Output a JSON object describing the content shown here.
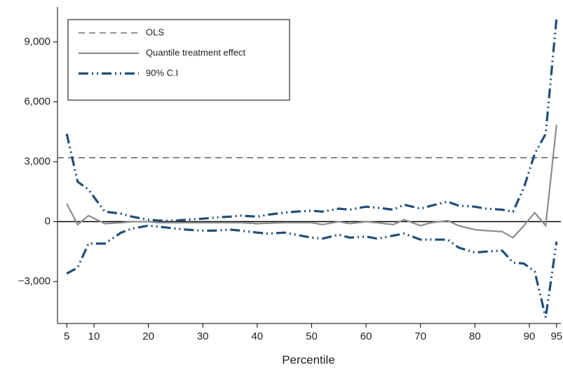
{
  "chart_data": {
    "type": "line",
    "x_label": "Percentile",
    "x": [
      5,
      7,
      9,
      12,
      15,
      17,
      20,
      22,
      25,
      27,
      30,
      32,
      35,
      37,
      40,
      42,
      45,
      47,
      50,
      52,
      55,
      57,
      60,
      62,
      65,
      67,
      70,
      72,
      75,
      77,
      80,
      82,
      85,
      87,
      89,
      91,
      93,
      95
    ],
    "xlim": [
      3.3,
      95.8
    ],
    "xticks": [
      5,
      10,
      20,
      30,
      40,
      50,
      60,
      70,
      80,
      90,
      95
    ],
    "ylim": [
      -5100,
      10750
    ],
    "yticks": [
      {
        "value": -3000,
        "label": "−3,000"
      },
      0,
      {
        "value": 3000,
        "label": "3,000"
      },
      {
        "value": 6000,
        "label": "6,000"
      },
      {
        "value": 9000,
        "label": "9,000"
      }
    ],
    "reference_line": {
      "name": "OLS",
      "value": 3200,
      "color": "#555555"
    },
    "zero_line": true,
    "series": [
      {
        "name": "Quantile treatment effect",
        "color": "#8c8c8c",
        "values": [
          900,
          -150,
          300,
          -100,
          -50,
          0,
          0,
          -50,
          -50,
          -50,
          -50,
          -50,
          -50,
          -50,
          -100,
          -80,
          -50,
          -50,
          -50,
          -150,
          0,
          -100,
          0,
          -50,
          -150,
          100,
          -200,
          -50,
          50,
          -200,
          -400,
          -450,
          -500,
          -800,
          -200,
          450,
          -200,
          4850
        ]
      },
      {
        "name": "90% C.I",
        "color": "#1f4e79",
        "upper": [
          4400,
          2000,
          1600,
          500,
          400,
          250,
          100,
          50,
          50,
          100,
          150,
          200,
          250,
          300,
          250,
          350,
          450,
          500,
          550,
          500,
          650,
          600,
          750,
          700,
          600,
          850,
          650,
          800,
          1000,
          800,
          750,
          650,
          600,
          500,
          1700,
          3400,
          4400,
          10200
        ],
        "lower": [
          -2600,
          -2300,
          -1100,
          -1100,
          -550,
          -350,
          -200,
          -250,
          -350,
          -400,
          -450,
          -450,
          -400,
          -450,
          -550,
          -600,
          -550,
          -650,
          -800,
          -850,
          -650,
          -800,
          -750,
          -850,
          -700,
          -600,
          -900,
          -900,
          -900,
          -1300,
          -1550,
          -1500,
          -1450,
          -2050,
          -2100,
          -2500,
          -4800,
          -1000
        ]
      }
    ],
    "legend": "top-left"
  }
}
